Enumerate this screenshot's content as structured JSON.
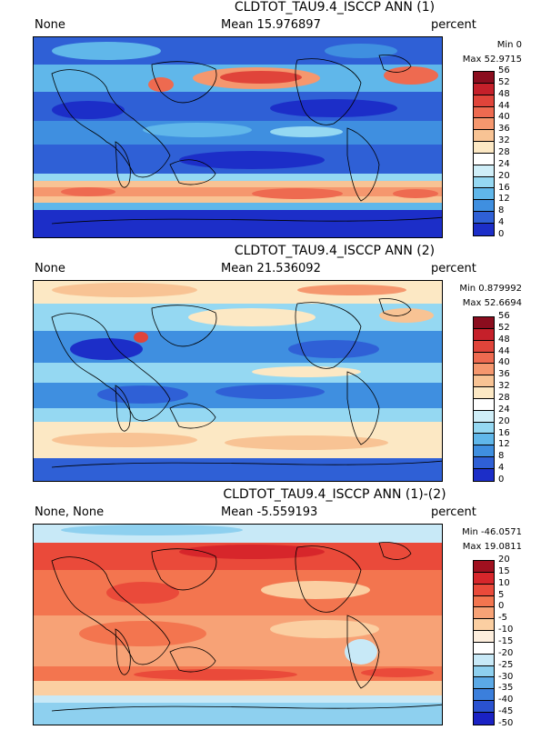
{
  "panels": [
    {
      "title": "CLDTOT_TAU9.4_ISCCP ANN (1)",
      "left_label": "None",
      "mean": "Mean 15.976897",
      "units": "percent",
      "min": "Min 0",
      "max": "Max 52.9715",
      "colorbar": {
        "ticks": [
          "56",
          "52",
          "48",
          "44",
          "40",
          "36",
          "32",
          "28",
          "24",
          "20",
          "16",
          "12",
          "8",
          "4",
          "0"
        ],
        "colors": [
          "#8b0d1e",
          "#c5202a",
          "#e0443a",
          "#ee6a50",
          "#f5976e",
          "#f8c394",
          "#fce8c4",
          "#ffffff",
          "#cfeef8",
          "#95d8f2",
          "#60b7ea",
          "#3f8fe0",
          "#2f60d6",
          "#1c2ec8"
        ]
      }
    },
    {
      "title": "CLDTOT_TAU9.4_ISCCP ANN (2)",
      "left_label": "None",
      "mean": "Mean 21.536092",
      "units": "percent",
      "min": "Min 0.879992",
      "max": "Max 52.6694",
      "colorbar": {
        "ticks": [
          "56",
          "52",
          "48",
          "44",
          "40",
          "36",
          "32",
          "28",
          "24",
          "20",
          "16",
          "12",
          "8",
          "4",
          "0"
        ],
        "colors": [
          "#8b0d1e",
          "#c5202a",
          "#e0443a",
          "#ee6a50",
          "#f5976e",
          "#f8c394",
          "#fce8c4",
          "#ffffff",
          "#cfeef8",
          "#95d8f2",
          "#60b7ea",
          "#3f8fe0",
          "#2f60d6",
          "#1c2ec8"
        ]
      }
    },
    {
      "title": "CLDTOT_TAU9.4_ISCCP ANN (1)-(2)",
      "left_label": "None, None",
      "mean": "Mean -5.559193",
      "units": "percent",
      "min": "Min -46.0571",
      "max": "Max 19.0811",
      "colorbar": {
        "ticks": [
          "20",
          "15",
          "10",
          "5",
          "0",
          "-5",
          "-10",
          "-15",
          "-20",
          "-25",
          "-30",
          "-35",
          "-40",
          "-45",
          "-50"
        ],
        "colors": [
          "#a0101f",
          "#d7262b",
          "#ea4a3a",
          "#f3754f",
          "#f7a276",
          "#fbcfa2",
          "#fdeedd",
          "#ffffff",
          "#c8e9f7",
          "#8ed0ef",
          "#5ba9e6",
          "#3b7fdc",
          "#2a52d0",
          "#1a22c4"
        ]
      }
    }
  ],
  "chart_data": [
    {
      "type": "heatmap",
      "title": "CLDTOT_TAU9.4_ISCCP ANN (1)",
      "units": "percent",
      "mean": 15.976897,
      "min": 0,
      "max": 52.9715,
      "levels": [
        0,
        4,
        8,
        12,
        16,
        20,
        24,
        28,
        32,
        36,
        40,
        44,
        48,
        52,
        56
      ]
    },
    {
      "type": "heatmap",
      "title": "CLDTOT_TAU9.4_ISCCP ANN (2)",
      "units": "percent",
      "mean": 21.536092,
      "min": 0.879992,
      "max": 52.6694,
      "levels": [
        0,
        4,
        8,
        12,
        16,
        20,
        24,
        28,
        32,
        36,
        40,
        44,
        48,
        52,
        56
      ]
    },
    {
      "type": "heatmap",
      "title": "CLDTOT_TAU9.4_ISCCP ANN (1)-(2)",
      "units": "percent",
      "mean": -5.559193,
      "min": -46.0571,
      "max": 19.0811,
      "levels": [
        -50,
        -45,
        -40,
        -35,
        -30,
        -25,
        -20,
        -15,
        -10,
        -5,
        0,
        5,
        10,
        15,
        20
      ]
    }
  ]
}
